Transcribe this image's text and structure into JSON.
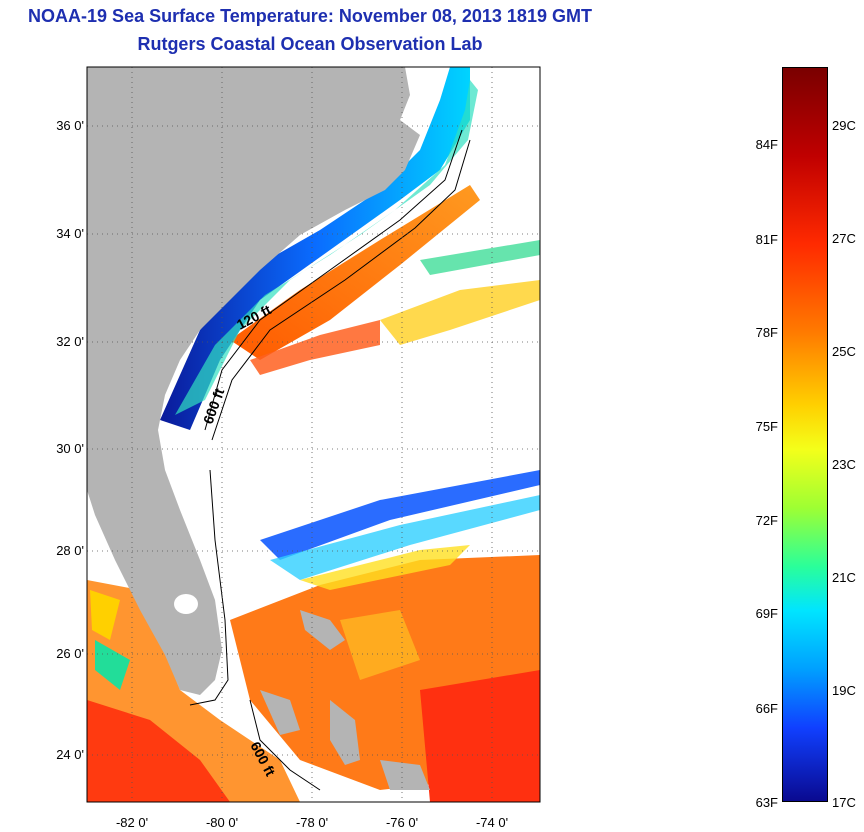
{
  "header": {
    "title": "NOAA-19 Sea Surface Temperature:  November 08, 2013 1819 GMT",
    "subtitle": "Rutgers Coastal Ocean Observation Lab"
  },
  "map": {
    "lat_labels": [
      "36 0'",
      "34 0'",
      "32 0'",
      "30 0'",
      "28 0'",
      "26 0'",
      "24 0'"
    ],
    "lon_labels": [
      "-82 0'",
      "-80 0'",
      "-78 0'",
      "-76 0'",
      "-74 0'"
    ],
    "contours": [
      "120 ft",
      "600 ft",
      "600 ft"
    ],
    "land_color": "#b4b4b4"
  },
  "colorbar": {
    "fahrenheit": [
      "84F",
      "81F",
      "78F",
      "75F",
      "72F",
      "69F",
      "66F",
      "63F"
    ],
    "celsius": [
      "29C",
      "27C",
      "25C",
      "23C",
      "21C",
      "19C",
      "17C"
    ]
  }
}
